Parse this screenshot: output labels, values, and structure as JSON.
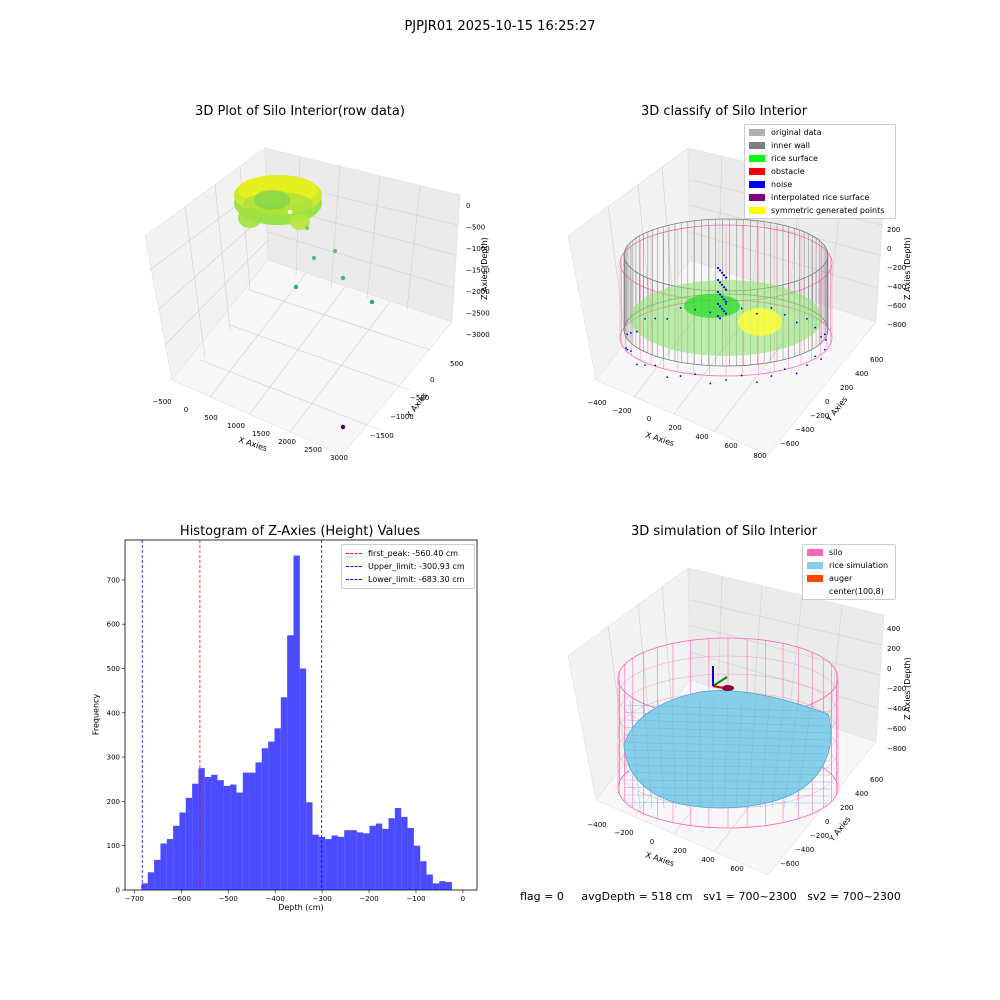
{
  "figure": {
    "suptitle": "PJPJR01 2025-10-15 16:25:27"
  },
  "panel1": {
    "title": "3D Plot of Silo Interior(row data)",
    "xlabel": "X Axies",
    "ylabel": "Y Axies",
    "zlabel": "Z Axies (Depth)",
    "xticks": [
      "−500",
      "0",
      "500",
      "1000",
      "1500",
      "2000",
      "2500",
      "3000"
    ],
    "yticks": [
      "500",
      "0",
      "−500",
      "−1000",
      "−1500"
    ],
    "zticks": [
      "0",
      "−500",
      "−1000",
      "−1500",
      "−2000",
      "−2500",
      "−3000"
    ]
  },
  "panel2": {
    "title": "3D classify of Silo Interior",
    "xlabel": "X Axies",
    "ylabel": "Y Axies",
    "zlabel": "Z Axies (Depth)",
    "xticks": [
      "−400",
      "−200",
      "0",
      "200",
      "400",
      "600",
      "800"
    ],
    "yticks": [
      "600",
      "400",
      "200",
      "0",
      "−200",
      "−400",
      "−600"
    ],
    "zticks": [
      "200",
      "0",
      "−200",
      "−400",
      "−600",
      "−800"
    ],
    "legend": [
      {
        "label": "original data",
        "color": "#b0b0b0"
      },
      {
        "label": "inner wall",
        "color": "#808080"
      },
      {
        "label": "rice surface",
        "color": "#00ff00"
      },
      {
        "label": "obstacle",
        "color": "#ff0000"
      },
      {
        "label": "noise",
        "color": "#0000ff"
      },
      {
        "label": "interpolated rice surface",
        "color": "#800080"
      },
      {
        "label": "symmetric generated points",
        "color": "#ffff00"
      }
    ]
  },
  "chart_data": [
    {
      "type": "bar",
      "title": "Histogram of Z-Axies (Height) Values",
      "xlabel": "Depth (cm)",
      "ylabel": "Frequency",
      "xlim": [
        -720,
        30
      ],
      "ylim": [
        0,
        790
      ],
      "bin_start": -685,
      "bin_width": 13.5,
      "color": "#0000ff",
      "xticks": [
        "−700",
        "−600",
        "−500",
        "−400",
        "−300",
        "−200",
        "−100",
        "0"
      ],
      "yticks": [
        "0",
        "100",
        "200",
        "300",
        "400",
        "500",
        "600",
        "700"
      ],
      "values": [
        15,
        40,
        68,
        105,
        115,
        145,
        175,
        208,
        240,
        275,
        255,
        260,
        248,
        235,
        238,
        220,
        265,
        265,
        288,
        320,
        335,
        365,
        435,
        575,
        755,
        500,
        198,
        125,
        120,
        115,
        123,
        120,
        135,
        135,
        130,
        128,
        145,
        150,
        138,
        162,
        185,
        165,
        140,
        100,
        65,
        35,
        15,
        20,
        18
      ],
      "lines": [
        {
          "label": "first_peak: -560.40 cm",
          "x": -560.4,
          "color": "#ff0000"
        },
        {
          "label": "Upper_limit: -300.93 cm",
          "x": -300.93,
          "color": "#0000ff"
        },
        {
          "label": "Lower_limit: -683.30 cm",
          "x": -683.3,
          "color": "#0000ff"
        }
      ]
    }
  ],
  "panel4": {
    "title": "3D simulation of Silo Interior",
    "xlabel": "X Axies",
    "ylabel": "Y Axies",
    "zlabel": "Z Axies (Depth)",
    "xticks": [
      "−400",
      "−200",
      "0",
      "200",
      "400",
      "600"
    ],
    "yticks": [
      "600",
      "400",
      "200",
      "0",
      "−200",
      "−400",
      "−600"
    ],
    "zticks": [
      "400",
      "200",
      "0",
      "−200",
      "−400",
      "−600",
      "−800"
    ],
    "legend": [
      {
        "label": "silo",
        "color": "#ff69b4"
      },
      {
        "label": "rice simulation",
        "color": "#87ceeb"
      },
      {
        "label": "auger",
        "color": "#ff4500"
      },
      {
        "label": "center(100,8)",
        "color": "#ffffff"
      }
    ]
  },
  "status": {
    "flag": "flag = 0",
    "avg": "avgDepth = 518 cm",
    "sv1": "sv1 = 700~2300",
    "sv2": "sv2 = 700~2300"
  }
}
